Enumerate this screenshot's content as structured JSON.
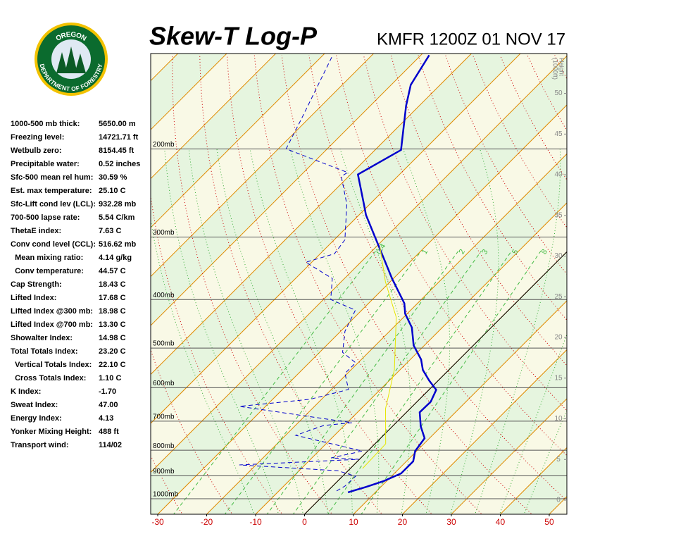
{
  "logo": {
    "top": "OREGON",
    "bottom": "DEPARTMENT OF FORESTRY"
  },
  "stats": [
    {
      "label": "1000-500 mb thick:",
      "value": "5650.00 m"
    },
    {
      "label": "Freezing level:",
      "value": "14721.71 ft"
    },
    {
      "label": "Wetbulb zero:",
      "value": "8154.45 ft"
    },
    {
      "label": "Precipitable water:",
      "value": "0.52 inches"
    },
    {
      "label": "Sfc-500 mean rel hum:",
      "value": "30.59 %"
    },
    {
      "label": "Est. max temperature:",
      "value": "25.10 C"
    },
    {
      "label": "Sfc-Lift cond lev (LCL):",
      "value": "932.28 mb"
    },
    {
      "label": "700-500 lapse rate:",
      "value": "5.54 C/km"
    },
    {
      "label": "ThetaE index:",
      "value": "7.63 C"
    },
    {
      "label": "Conv cond level (CCL):",
      "value": "516.62 mb"
    },
    {
      "label": "  Mean mixing ratio:",
      "value": "4.14 g/kg"
    },
    {
      "label": "  Conv temperature:",
      "value": "44.57 C"
    },
    {
      "label": "Cap Strength:",
      "value": "18.43 C"
    },
    {
      "label": "Lifted Index:",
      "value": "17.68 C"
    },
    {
      "label": "Lifted Index @300 mb:",
      "value": "18.98 C"
    },
    {
      "label": "Lifted Index @700 mb:",
      "value": "13.30 C"
    },
    {
      "label": "Showalter Index:",
      "value": "14.98 C"
    },
    {
      "label": "Total Totals Index:",
      "value": "23.20 C"
    },
    {
      "label": "  Vertical Totals Index:",
      "value": "22.10 C"
    },
    {
      "label": "  Cross Totals Index:",
      "value": "1.10 C"
    },
    {
      "label": "K Index:",
      "value": "-1.70"
    },
    {
      "label": "Sweat Index:",
      "value": "47.00"
    },
    {
      "label": "Energy Index:",
      "value": "4.13"
    },
    {
      "label": "Yonker Mixing Height:",
      "value": "488 ft"
    },
    {
      "label": "Transport wind:",
      "value": "114/02"
    }
  ],
  "chart_data": {
    "type": "skewt",
    "title": "Skew-T Log-P",
    "subtitle": "KMFR 1200Z 01 NOV 17",
    "xlim": [
      -31.44,
      53.6
    ],
    "xticks": [
      -30,
      -20,
      -10,
      0,
      10,
      20,
      30,
      40,
      50
    ],
    "ylim": [
      1074,
      129
    ],
    "ylog": true,
    "yticks": [
      {
        "value": 200,
        "label": "200mb"
      },
      {
        "value": 300,
        "label": "300mb"
      },
      {
        "value": 400,
        "label": "400mb"
      },
      {
        "value": 500,
        "label": "500mb"
      },
      {
        "value": 600,
        "label": "600mb"
      },
      {
        "value": 700,
        "label": "700mb"
      },
      {
        "value": 800,
        "label": "800mb"
      },
      {
        "value": 900,
        "label": "900mb"
      },
      {
        "value": 1000,
        "label": "1000mb"
      }
    ],
    "y2label": [
      "Height",
      "(1000ft)"
    ],
    "y2lim": [
      -1.73,
      54.9
    ],
    "y2ticks": [
      0,
      5,
      10,
      15,
      20,
      25,
      30,
      35,
      40,
      45,
      50
    ],
    "mixing_ratios": [
      0.4,
      1,
      2,
      3,
      5,
      8
    ],
    "series": [
      {
        "color": "#0000cc",
        "style": "solid",
        "pressure": [
          971,
          947,
          922,
          890,
          842,
          803,
          757,
          717,
          672,
          640,
          606,
          581,
          553,
          527,
          494,
          455,
          427,
          407,
          363,
          271,
          258,
          225,
          201,
          164,
          149,
          130
        ],
        "temperature": [
          4.4,
          7.0,
          9.4,
          11.4,
          11.4,
          9.7,
          9.0,
          5.8,
          2.7,
          2.8,
          1.5,
          -1.8,
          -5.3,
          -7.8,
          -12.2,
          -16.2,
          -20.4,
          -22.7,
          -30.3,
          -48.6,
          -51.2,
          -58.5,
          -54.7,
          -62.7,
          -66,
          -68.3
        ]
      },
      {
        "color": "#0000cc",
        "style": "dashed",
        "pressure": [
          965,
          943,
          902,
          879,
          856,
          834,
          829,
          803,
          747,
          714,
          705,
          654,
          633,
          605,
          562,
          535,
          510,
          463,
          420,
          400,
          363,
          337,
          324,
          304,
          258,
          227,
          223,
          200,
          175,
          130
        ],
        "temperature": [
          1.8,
          2.5,
          2.7,
          -2.1,
          -23.4,
          -0.1,
          -6.1,
          -1.1,
          -17.9,
          -14.2,
          -9.0,
          -35.3,
          -22.4,
          -16.5,
          -20.5,
          -20.5,
          -25.3,
          -29.1,
          -31.3,
          -38.5,
          -42.5,
          -51.2,
          -47.1,
          -47.8,
          -54.7,
          -61.5,
          -61.0,
          -78.4,
          -81.3,
          -88
        ]
      },
      {
        "color": "#e6e600",
        "style": "solid",
        "pressure": [
          870,
          777,
          661,
          552,
          434,
          369,
          314
        ],
        "temperature": [
          2.5,
          2.2,
          -5.0,
          -11.2,
          -21.5,
          -30.9,
          -39.2
        ]
      }
    ]
  }
}
